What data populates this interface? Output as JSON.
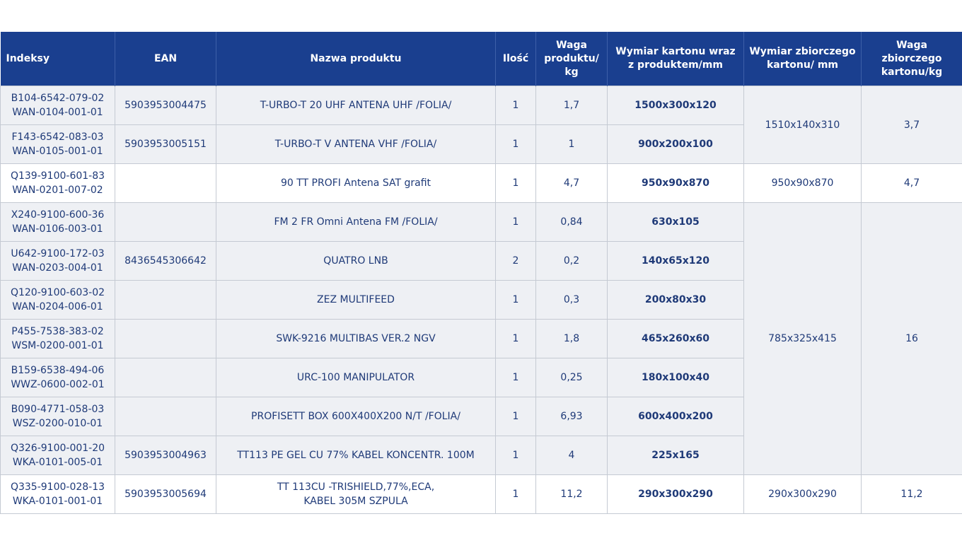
{
  "headers": {
    "indeksy": "Indeksy",
    "ean": "EAN",
    "nazwa": "Nazwa produktu",
    "ilosc": "Ilość",
    "waga": [
      "Waga",
      "produktu/",
      "kg"
    ],
    "wymiar_kartonu": [
      "Wymiar kartonu wraz",
      "z produktem/mm"
    ],
    "wymiar_zbiorczego": [
      "Wymiar zbiorczego",
      "kartonu/ mm"
    ],
    "waga_zbiorczego": [
      "Waga",
      "zbiorczego",
      "kartonu/kg"
    ]
  },
  "rows": [
    {
      "idx": [
        "B104-6542-079-02",
        "WAN-0104-001-01"
      ],
      "ean": "5903953004475",
      "name": [
        "T-URBO-T 20 UHF ANTENA UHF /FOLIA/"
      ],
      "qty": "1",
      "weight": "1,7",
      "dim": "1500x300x120"
    },
    {
      "idx": [
        "F143-6542-083-03",
        "WAN-0105-001-01"
      ],
      "ean": "5903953005151",
      "name": [
        "T-URBO-T V ANTENA VHF /FOLIA/"
      ],
      "qty": "1",
      "weight": "1",
      "dim": "900x200x100"
    },
    {
      "idx": [
        "Q139-9100-601-83",
        "WAN-0201-007-02"
      ],
      "ean": "",
      "name": [
        "90 TT PROFI Antena SAT grafit"
      ],
      "qty": "1",
      "weight": "4,7",
      "dim": "950x90x870"
    },
    {
      "idx": [
        "X240-9100-600-36",
        "WAN-0106-003-01"
      ],
      "ean": "",
      "name": [
        "FM 2 FR Omni Antena FM /FOLIA/"
      ],
      "qty": "1",
      "weight": "0,84",
      "dim": "630x105"
    },
    {
      "idx": [
        "U642-9100-172-03",
        "WAN-0203-004-01"
      ],
      "ean": "8436545306642",
      "name": [
        "QUATRO LNB"
      ],
      "qty": "2",
      "weight": "0,2",
      "dim": "140x65x120"
    },
    {
      "idx": [
        "Q120-9100-603-02",
        "WAN-0204-006-01"
      ],
      "ean": "",
      "name": [
        "ZEZ MULTIFEED"
      ],
      "qty": "1",
      "weight": "0,3",
      "dim": "200x80x30"
    },
    {
      "idx": [
        "P455-7538-383-02",
        "WSM-0200-001-01"
      ],
      "ean": "",
      "name": [
        "SWK-9216 MULTIBAS VER.2 NGV"
      ],
      "qty": "1",
      "weight": "1,8",
      "dim": "465x260x60"
    },
    {
      "idx": [
        "B159-6538-494-06",
        "WWZ-0600-002-01"
      ],
      "ean": "",
      "name": [
        "URC-100 MANIPULATOR"
      ],
      "qty": "1",
      "weight": "0,25",
      "dim": "180x100x40"
    },
    {
      "idx": [
        "B090-4771-058-03",
        "WSZ-0200-010-01"
      ],
      "ean": "",
      "name": [
        "PROFISETT BOX 600X400X200 N/T /FOLIA/"
      ],
      "qty": "1",
      "weight": "6,93",
      "dim": "600x400x200"
    },
    {
      "idx": [
        "Q326-9100-001-20",
        "WKA-0101-005-01"
      ],
      "ean": "5903953004963",
      "name": [
        "TT113 PE GEL CU 77% KABEL KONCENTR. 100M"
      ],
      "qty": "1",
      "weight": "4",
      "dim": "225x165"
    },
    {
      "idx": [
        "Q335-9100-028-13",
        "WKA-0101-001-01"
      ],
      "ean": "5903953005694",
      "name": [
        "TT 113CU -TRISHIELD,77%,ECA,",
        "KABEL 305M SZPULA"
      ],
      "qty": "1",
      "weight": "11,2",
      "dim": "290x300x290"
    }
  ],
  "groups": [
    {
      "dim": "1510x140x310",
      "weight": "3,7"
    },
    {
      "dim": "950x90x870",
      "weight": "4,7"
    },
    {
      "dim": "785x325x415",
      "weight": "16"
    },
    {
      "dim": "290x300x290",
      "weight": "11,2"
    }
  ]
}
